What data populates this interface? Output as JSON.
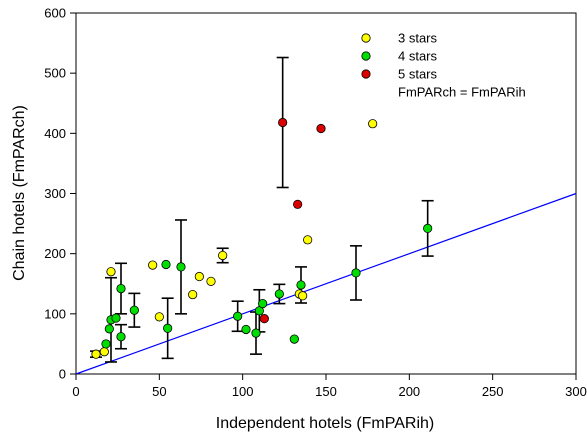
{
  "chart_data": {
    "type": "scatter",
    "xlabel": "Independent hotels (FmPARih)",
    "ylabel": "Chain hotels (FmPARch)",
    "xlim": [
      0,
      300
    ],
    "ylim": [
      0,
      600
    ],
    "xticks": [
      "0",
      "50",
      "100",
      "150",
      "200",
      "250",
      "300"
    ],
    "yticks": [
      "0",
      "100",
      "200",
      "300",
      "400",
      "500",
      "600"
    ],
    "legend_position": "top-right",
    "series": [
      {
        "name": "3 stars",
        "color": "#ffff00",
        "points": [
          {
            "x": 12,
            "y": 33,
            "err": 5
          },
          {
            "x": 17,
            "y": 37
          },
          {
            "x": 21,
            "y": 170
          },
          {
            "x": 46,
            "y": 181
          },
          {
            "x": 50,
            "y": 95
          },
          {
            "x": 70,
            "y": 132
          },
          {
            "x": 74,
            "y": 162
          },
          {
            "x": 81,
            "y": 154
          },
          {
            "x": 88,
            "y": 197,
            "err": 12
          },
          {
            "x": 134,
            "y": 133
          },
          {
            "x": 136,
            "y": 130
          },
          {
            "x": 139,
            "y": 223
          },
          {
            "x": 178,
            "y": 416
          }
        ]
      },
      {
        "name": "4 stars",
        "color": "#00dd00",
        "points": [
          {
            "x": 18,
            "y": 50
          },
          {
            "x": 20,
            "y": 75
          },
          {
            "x": 21,
            "y": 90,
            "err": 70
          },
          {
            "x": 24,
            "y": 93
          },
          {
            "x": 27,
            "y": 62,
            "err": 20
          },
          {
            "x": 27,
            "y": 142,
            "err": 42
          },
          {
            "x": 35,
            "y": 106,
            "err": 28
          },
          {
            "x": 54,
            "y": 182
          },
          {
            "x": 55,
            "y": 76,
            "err": 50
          },
          {
            "x": 63,
            "y": 178,
            "err": 78
          },
          {
            "x": 97,
            "y": 96,
            "err": 25
          },
          {
            "x": 102,
            "y": 74
          },
          {
            "x": 108,
            "y": 68,
            "err": 35
          },
          {
            "x": 110,
            "y": 105,
            "err": 35
          },
          {
            "x": 112,
            "y": 117
          },
          {
            "x": 122,
            "y": 133,
            "err": 16
          },
          {
            "x": 131,
            "y": 58
          },
          {
            "x": 135,
            "y": 148,
            "err": 30
          },
          {
            "x": 168,
            "y": 168,
            "err": 45
          },
          {
            "x": 211,
            "y": 242,
            "err": 46
          }
        ]
      },
      {
        "name": "5 stars",
        "color": "#dd0000",
        "points": [
          {
            "x": 113,
            "y": 92
          },
          {
            "x": 124,
            "y": 418,
            "err": 108
          },
          {
            "x": 133,
            "y": 282
          },
          {
            "x": 147,
            "y": 408
          }
        ]
      }
    ],
    "reference_line": {
      "label": "FmPARch = FmPARih",
      "color": "#0000ff"
    }
  }
}
